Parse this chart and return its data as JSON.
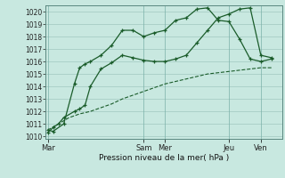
{
  "bg_color": "#c8e8e0",
  "grid_color": "#a0c8c0",
  "line_color": "#1a5c2a",
  "xlabel": "Pression niveau de la mer( hPa )",
  "ylim": [
    1009.8,
    1020.5
  ],
  "yticks": [
    1010,
    1011,
    1012,
    1013,
    1014,
    1015,
    1016,
    1017,
    1018,
    1019,
    1020
  ],
  "xtick_labels": [
    "Mar",
    "Sam",
    "Mer",
    "Jeu",
    "Ven"
  ],
  "xtick_positions": [
    0,
    9,
    11,
    17,
    20
  ],
  "xlim": [
    -0.2,
    22
  ],
  "series1_x": [
    0,
    0.5,
    1.5,
    2.5,
    3,
    3.5,
    4,
    5,
    6,
    7,
    8,
    9,
    10,
    11,
    12,
    13,
    14,
    15,
    16,
    17,
    18,
    19,
    20,
    21
  ],
  "series1_y": [
    1010.5,
    1010.4,
    1011.0,
    1014.2,
    1015.5,
    1015.8,
    1016.0,
    1016.5,
    1017.3,
    1018.5,
    1018.5,
    1018.0,
    1018.3,
    1018.5,
    1019.3,
    1019.5,
    1020.2,
    1020.3,
    1019.3,
    1019.2,
    1017.8,
    1016.2,
    1016.0,
    1016.2
  ],
  "series2_x": [
    0,
    0.5,
    1,
    1.5,
    2.5,
    3,
    3.5,
    4,
    5,
    6,
    7,
    8,
    9,
    10,
    11,
    12,
    13,
    14,
    15,
    16,
    17,
    18,
    19,
    20,
    21
  ],
  "series2_y": [
    1010.3,
    1010.7,
    1011.0,
    1011.5,
    1012.0,
    1012.2,
    1012.5,
    1014.0,
    1015.4,
    1015.9,
    1016.5,
    1016.3,
    1016.1,
    1016.0,
    1016.0,
    1016.2,
    1016.5,
    1017.5,
    1018.5,
    1019.5,
    1019.8,
    1020.2,
    1020.3,
    1016.5,
    1016.3
  ],
  "series3_x": [
    0,
    1,
    2,
    3,
    4,
    5,
    6,
    7,
    8,
    9,
    10,
    11,
    12,
    13,
    14,
    15,
    16,
    17,
    18,
    19,
    20,
    21
  ],
  "series3_y": [
    1010.5,
    1011.0,
    1011.5,
    1011.8,
    1012.0,
    1012.3,
    1012.6,
    1013.0,
    1013.3,
    1013.6,
    1013.9,
    1014.2,
    1014.4,
    1014.6,
    1014.8,
    1015.0,
    1015.1,
    1015.2,
    1015.3,
    1015.4,
    1015.5,
    1015.5
  ]
}
